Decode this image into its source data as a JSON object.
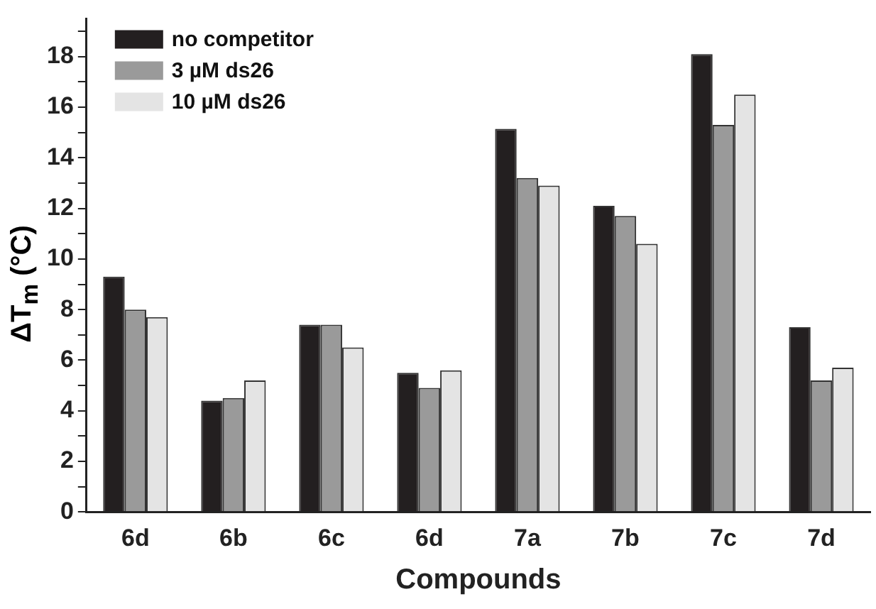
{
  "chart_data": {
    "type": "bar",
    "xlabel": "Compounds",
    "ylabel": "ΔT$_{m}$ (°C)",
    "categories": [
      "6d",
      "6b",
      "6c",
      "6d",
      "7a",
      "7b",
      "7c",
      "7d"
    ],
    "series": [
      {
        "name": "no competitor",
        "color": "#231f20",
        "values": [
          9.3,
          4.4,
          7.4,
          5.5,
          15.15,
          12.1,
          18.1,
          7.3
        ]
      },
      {
        "name": "3 µM ds26",
        "color": "#9a9a9a",
        "values": [
          8.0,
          4.5,
          7.4,
          4.9,
          13.2,
          11.7,
          15.3,
          5.2
        ]
      },
      {
        "name": "10 µM ds26",
        "color": "#e4e4e4",
        "values": [
          7.7,
          5.2,
          6.5,
          5.6,
          12.9,
          10.6,
          16.5,
          5.7
        ]
      }
    ],
    "ylim": [
      0,
      19.5
    ],
    "yticks": [
      0,
      {
        "value": 1,
        "label": null
      },
      2,
      {
        "value": 3,
        "label": null
      },
      4,
      {
        "value": 5,
        "label": null
      },
      6,
      {
        "value": 7,
        "label": null
      },
      8,
      {
        "value": 9,
        "label": null
      },
      10,
      {
        "value": 11,
        "label": null
      },
      12,
      {
        "value": 13,
        "label": null
      },
      14,
      {
        "value": 15,
        "label": null
      },
      16,
      {
        "value": 17,
        "label": null
      },
      18,
      {
        "value": 19,
        "label": null
      }
    ],
    "grid": false,
    "legend": "top left"
  }
}
